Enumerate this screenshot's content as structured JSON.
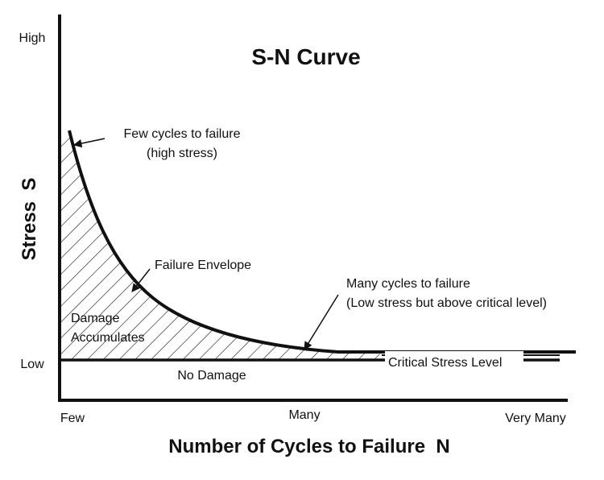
{
  "title": "S-N Curve",
  "axes": {
    "y_label": "Stress  S",
    "x_label": "Number of Cycles to Failure  N",
    "y_ticks": {
      "high": "High",
      "low": "Low"
    },
    "x_ticks": {
      "few": "Few",
      "many": "Many",
      "very_many": "Very Many"
    }
  },
  "annotations": {
    "few_cycles_line1": "Few cycles to failure",
    "few_cycles_line2": "(high stress)",
    "failure_envelope": "Failure Envelope",
    "many_cycles_line1": "Many cycles to failure",
    "many_cycles_line2": "(Low stress but above critical level)",
    "damage_line1": "Damage",
    "damage_line2": "Accumulates",
    "critical_stress": "Critical Stress Level",
    "no_damage": "No Damage"
  },
  "colors": {
    "ink": "#111111",
    "background": "#ffffff"
  }
}
